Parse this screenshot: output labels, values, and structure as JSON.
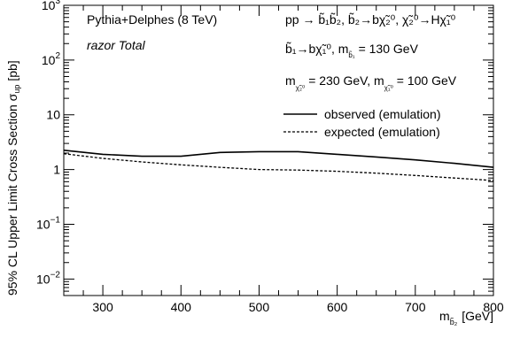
{
  "chart_data": {
    "type": "line",
    "xlabel": "m",
    "xlabel_sub": "b̃₂",
    "xlabel_unit": "[GeV]",
    "ylabel": "95% CL Upper Limit Cross Section σ",
    "ylabel_sub": "up",
    "ylabel_unit": "[pb]",
    "xlim": [
      250,
      800
    ],
    "ylim": [
      0.005,
      1000
    ],
    "yscale": "log",
    "grid": false,
    "legend_position": "top-right",
    "x_ticks": [
      300,
      400,
      500,
      600,
      700,
      800
    ],
    "x_tick_labels": [
      "300",
      "400",
      "500",
      "600",
      "700",
      "800"
    ],
    "y_ticks": [
      0.01,
      0.1,
      1,
      10,
      100,
      1000
    ],
    "y_tick_labels": [
      {
        "base": "10",
        "exp": "−2"
      },
      {
        "base": "10",
        "exp": "−1"
      },
      {
        "base": "1",
        "exp": ""
      },
      {
        "base": "10",
        "exp": ""
      },
      {
        "base": "10",
        "exp": "2"
      },
      {
        "base": "10",
        "exp": "3"
      }
    ],
    "series": [
      {
        "name": "observed (emulation)",
        "style": "solid",
        "color": "#000000",
        "x": [
          250,
          300,
          350,
          400,
          450,
          500,
          550,
          600,
          650,
          700,
          750,
          800
        ],
        "y": [
          2.25,
          1.9,
          1.75,
          1.75,
          2.05,
          2.12,
          2.12,
          1.9,
          1.7,
          1.5,
          1.3,
          1.1
        ]
      },
      {
        "name": "expected (emulation)",
        "style": "dashed",
        "color": "#000000",
        "x": [
          250,
          300,
          350,
          400,
          450,
          500,
          550,
          600,
          650,
          700,
          750,
          800
        ],
        "y": [
          1.95,
          1.6,
          1.38,
          1.22,
          1.1,
          1.0,
          0.98,
          0.93,
          0.86,
          0.78,
          0.7,
          0.63
        ]
      }
    ],
    "annotations": {
      "generator": "Pythia+Delphes (8 TeV)",
      "analysis": "razor Total",
      "process": "pp → b̃₁b̃₂, b̃₂→bχ̃₂⁰, χ̃₂⁰→Hχ̃₁⁰",
      "decay": "b̃₁→bχ̃₁⁰, m",
      "decay_sub": "b̃₁",
      "decay_value": "= 130 GeV",
      "mass_chi2_label": "m",
      "mass_chi2_sub": "χ̃₂⁰",
      "mass_chi2_value": "= 230 GeV, m",
      "mass_chi1_sub": "χ̃₁⁰",
      "mass_chi1_value": "= 100 GeV"
    }
  }
}
